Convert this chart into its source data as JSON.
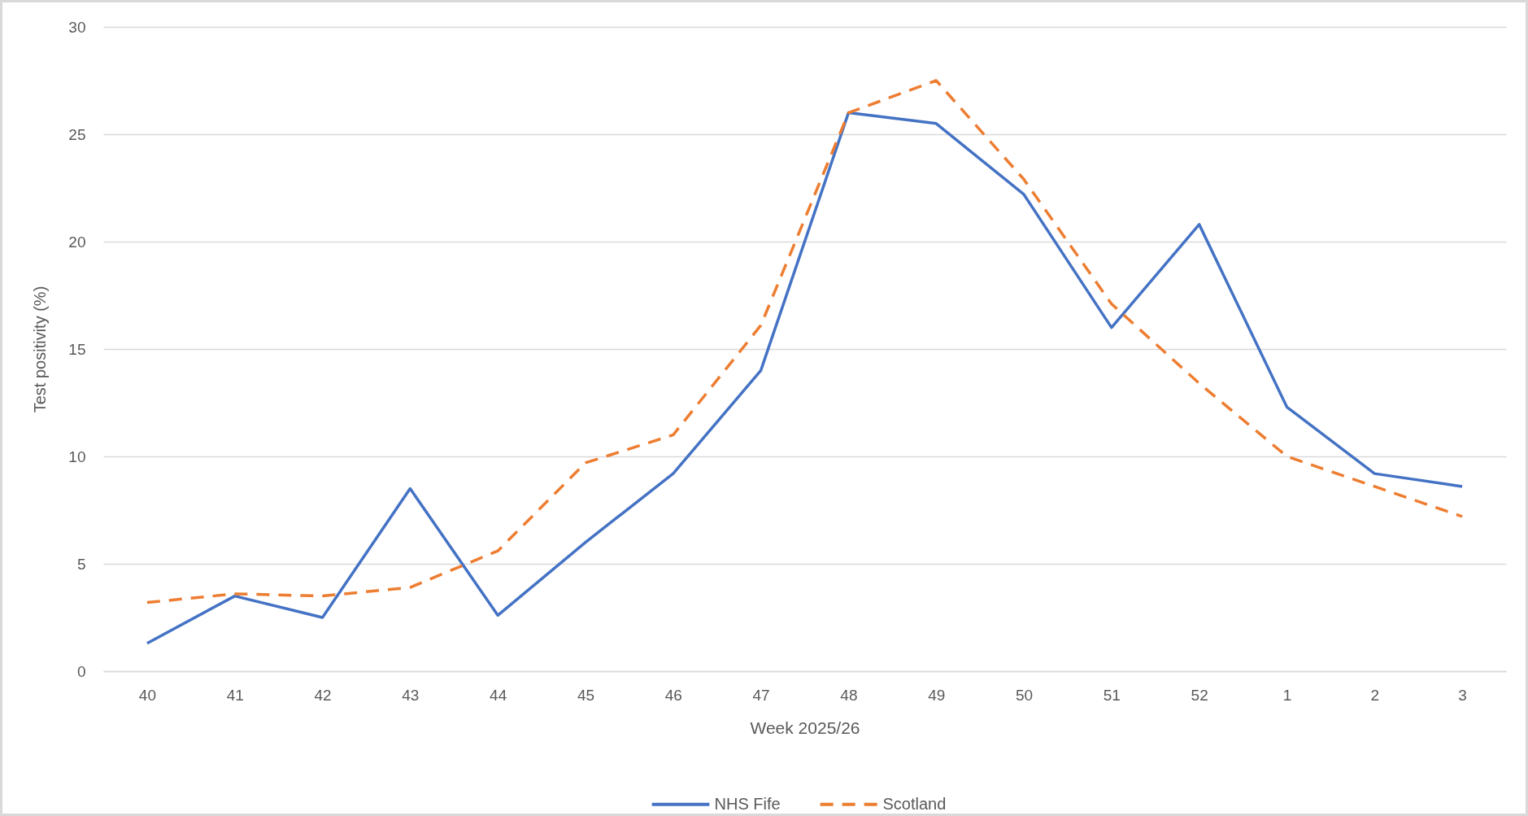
{
  "chart_data": {
    "type": "line",
    "xlabel": "Week 2025/26",
    "ylabel": "Test positivity (%)",
    "categories": [
      "40",
      "41",
      "42",
      "43",
      "44",
      "45",
      "46",
      "47",
      "48",
      "49",
      "50",
      "51",
      "52",
      "1",
      "2",
      "3"
    ],
    "series": [
      {
        "name": "NHS Fife",
        "color": "#4472c4",
        "line_style": "solid",
        "values": [
          1.3,
          3.5,
          2.5,
          8.5,
          2.6,
          6.0,
          9.2,
          14.0,
          26.0,
          25.5,
          22.2,
          16.0,
          20.8,
          12.3,
          9.2,
          8.6
        ]
      },
      {
        "name": "Scotland",
        "color": "#ed7d31",
        "line_style": "dashed",
        "values": [
          3.2,
          3.6,
          3.5,
          3.9,
          5.6,
          9.7,
          11.0,
          16.1,
          26.0,
          27.5,
          22.9,
          17.1,
          13.4,
          10.0,
          8.6,
          7.2
        ]
      }
    ],
    "ylim": [
      0,
      30
    ],
    "yticks": [
      0,
      5,
      10,
      15,
      20,
      25,
      30
    ],
    "grid": "y",
    "legend": "bottom"
  }
}
